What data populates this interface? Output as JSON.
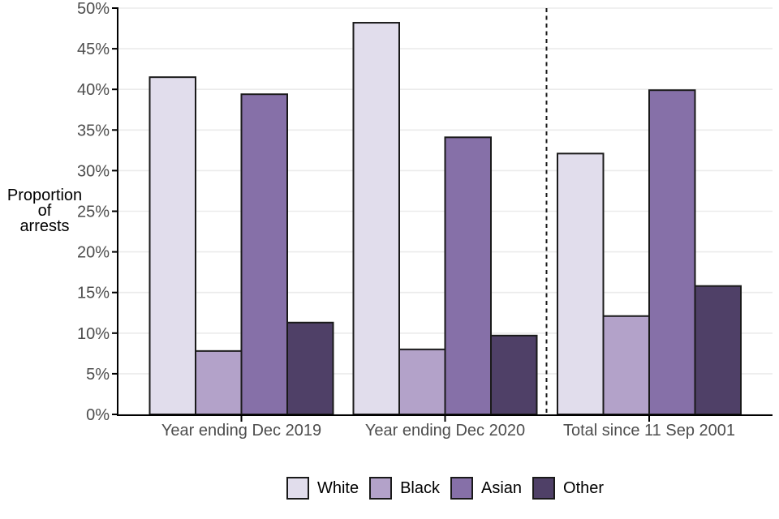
{
  "chart_data": {
    "type": "bar",
    "title": "",
    "ylabel_lines": [
      "Proportion",
      "of",
      "arrests"
    ],
    "ylabel": "Proportion of arrests",
    "xlabel": "",
    "categories": [
      "Year ending Dec 2019",
      "Year ending Dec 2020",
      "Total since 11 Sep 2001"
    ],
    "series": [
      {
        "name": "White",
        "color": "#E1DDEC",
        "values": [
          41.5,
          48.2,
          32.1
        ]
      },
      {
        "name": "Black",
        "color": "#B3A2C9",
        "values": [
          7.8,
          8.0,
          12.1
        ]
      },
      {
        "name": "Asian",
        "color": "#8670A8",
        "values": [
          39.4,
          34.1,
          39.9
        ]
      },
      {
        "name": "Other",
        "color": "#4F4067",
        "values": [
          11.3,
          9.7,
          15.8
        ]
      }
    ],
    "y_ticks": [
      "0%",
      "5%",
      "10%",
      "15%",
      "20%",
      "25%",
      "30%",
      "35%",
      "40%",
      "45%",
      "50%"
    ],
    "y_tick_step": 5,
    "ylim": [
      0,
      50
    ],
    "grid": true,
    "legend_position": "bottom",
    "separator_note": "dashed vertical line between 'Year ending Dec 2020' and 'Total since 11 Sep 2001'",
    "bar_outline": "#1A1A1A",
    "axis_color": "#000000",
    "grid_color": "#EBEBEB",
    "tick_label_color": "#4D4D4D",
    "axis_title_color": "#000000"
  }
}
